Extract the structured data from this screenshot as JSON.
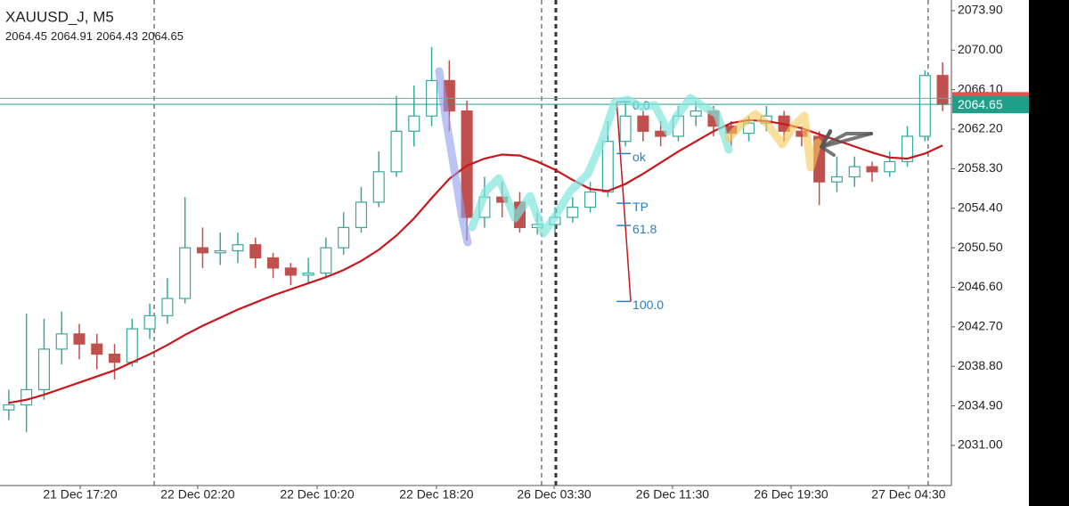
{
  "chart_data": {
    "type": "candlestick",
    "title": "XAUUSD_J, M5",
    "header_ohlc": [
      2064.45,
      2064.91,
      2064.43,
      2064.65
    ],
    "up_color": "#3aa89a",
    "down_color": "#c0504d",
    "open": [
      2034.5,
      2035.0,
      2036.5,
      2040.5,
      2042.0,
      2041.0,
      2040.0,
      2039.2,
      2042.5,
      2043.8,
      2045.5,
      2050.5,
      2050.0,
      2050.2,
      2050.8,
      2049.5,
      2048.5,
      2047.8,
      2048.0,
      2050.5,
      2052.5,
      2055.0,
      2058.0,
      2062.0,
      2063.5,
      2067.0,
      2064.0,
      2053.5,
      2055.5,
      2055.0,
      2052.5,
      2052.8,
      2053.5,
      2054.5,
      2056.0,
      2061.0,
      2063.5,
      2062.0,
      2061.5,
      2063.5,
      2064.0,
      2062.5,
      2061.8,
      2062.8,
      2063.5,
      2062.0,
      2061.5,
      2057.0,
      2057.5,
      2058.5,
      2058.0,
      2059.0,
      2061.5,
      2067.5
    ],
    "high": [
      2036.5,
      2044.0,
      2043.5,
      2044.2,
      2043.0,
      2042.0,
      2041.0,
      2043.5,
      2045.0,
      2047.5,
      2055.5,
      2052.5,
      2052.0,
      2052.0,
      2051.5,
      2050.0,
      2049.0,
      2049.5,
      2051.5,
      2054.0,
      2056.5,
      2060.0,
      2065.5,
      2066.5,
      2070.3,
      2069.0,
      2065.0,
      2057.5,
      2057.0,
      2056.0,
      2054.0,
      2054.5,
      2055.5,
      2057.0,
      2063.0,
      2065.0,
      2064.0,
      2063.0,
      2064.5,
      2065.0,
      2064.5,
      2063.0,
      2063.5,
      2064.5,
      2064.0,
      2062.5,
      2062.0,
      2059.5,
      2059.5,
      2059.0,
      2060.0,
      2062.5,
      2068.0,
      2068.8
    ],
    "low": [
      2033.5,
      2032.3,
      2035.5,
      2039.0,
      2039.5,
      2038.5,
      2037.5,
      2038.8,
      2041.5,
      2043.0,
      2045.0,
      2048.5,
      2048.8,
      2049.0,
      2048.5,
      2047.5,
      2046.8,
      2047.0,
      2047.5,
      2049.8,
      2052.0,
      2054.5,
      2057.5,
      2060.5,
      2062.5,
      2062.0,
      2051.2,
      2052.5,
      2053.5,
      2052.0,
      2051.8,
      2052.0,
      2053.0,
      2054.0,
      2055.5,
      2060.5,
      2061.0,
      2060.5,
      2061.0,
      2062.5,
      2061.5,
      2060.5,
      2061.0,
      2062.0,
      2061.0,
      2060.5,
      2054.7,
      2056.0,
      2056.5,
      2057.0,
      2057.5,
      2058.5,
      2061.0,
      2064.0
    ],
    "close": [
      2035.0,
      2036.5,
      2040.5,
      2042.0,
      2041.0,
      2040.0,
      2039.2,
      2042.5,
      2043.8,
      2045.5,
      2050.5,
      2050.0,
      2050.2,
      2050.8,
      2049.5,
      2048.5,
      2047.8,
      2048.0,
      2050.5,
      2052.5,
      2055.0,
      2058.0,
      2062.0,
      2063.5,
      2067.0,
      2064.0,
      2053.5,
      2055.5,
      2055.0,
      2052.5,
      2052.8,
      2053.5,
      2054.5,
      2056.0,
      2061.0,
      2063.5,
      2062.0,
      2061.5,
      2063.5,
      2064.0,
      2062.5,
      2061.8,
      2062.8,
      2063.5,
      2062.0,
      2061.5,
      2057.0,
      2057.5,
      2058.5,
      2058.0,
      2059.0,
      2061.5,
      2067.5,
      2064.65
    ],
    "ma": {
      "color": "#c8161d",
      "values": [
        2035.2,
        2035.5,
        2036.0,
        2036.6,
        2037.2,
        2037.8,
        2038.4,
        2039.2,
        2040.0,
        2040.9,
        2041.9,
        2042.8,
        2043.6,
        2044.4,
        2045.1,
        2045.8,
        2046.4,
        2047.0,
        2047.6,
        2048.3,
        2049.2,
        2050.3,
        2051.7,
        2053.4,
        2055.4,
        2057.3,
        2058.6,
        2059.3,
        2059.7,
        2059.6,
        2059.0,
        2058.2,
        2057.2,
        2056.3,
        2056.1,
        2056.8,
        2057.8,
        2058.9,
        2060.0,
        2061.0,
        2062.0,
        2062.8,
        2063.1,
        2063.0,
        2062.7,
        2062.3,
        2061.7,
        2061.1,
        2060.5,
        2059.9,
        2059.4,
        2059.3,
        2059.8,
        2060.6
      ]
    },
    "xlim": [
      0,
      54
    ],
    "xticks": [
      {
        "value": 4.55,
        "label": "21 Dec 17:20"
      },
      {
        "value": 11.22,
        "label": "22 Dec 02:20"
      },
      {
        "value": 18.0,
        "label": "22 Dec 10:20"
      },
      {
        "value": 24.77,
        "label": "22 Dec 18:20"
      },
      {
        "value": 31.45,
        "label": "26 Dec 03:30"
      },
      {
        "value": 38.17,
        "label": "26 Dec 11:30"
      },
      {
        "value": 44.9,
        "label": "26 Dec 19:30"
      },
      {
        "value": 51.57,
        "label": "27 Dec 04:30"
      }
    ],
    "ylim": [
      2027.04,
      2074.95
    ],
    "yticks": [
      {
        "value": 2073.9,
        "label": "2073.90"
      },
      {
        "value": 2070.0,
        "label": "2070.00"
      },
      {
        "value": 2066.1,
        "label": "2066.10"
      },
      {
        "value": 2062.2,
        "label": "2062.20"
      },
      {
        "value": 2058.3,
        "label": "2058.30"
      },
      {
        "value": 2054.4,
        "label": "2054.40"
      },
      {
        "value": 2050.5,
        "label": "2050.50"
      },
      {
        "value": 2046.6,
        "label": "2046.60"
      },
      {
        "value": 2042.7,
        "label": "2042.70"
      },
      {
        "value": 2038.8,
        "label": "2038.80"
      },
      {
        "value": 2034.9,
        "label": "2034.90"
      },
      {
        "value": 2031.0,
        "label": "2031.00"
      }
    ],
    "vlines": [
      8.75,
      30.74,
      31.55,
      52.68
    ],
    "ask_line": {
      "value": 2065.25,
      "color": "#e0524f"
    },
    "last_price": 2064.65,
    "last_price_color": "#1f9e89",
    "fib": {
      "color": "#c8161d",
      "label_color": "#2a7fc0",
      "x": [
        35.0,
        35.8
      ],
      "start": 2064.9,
      "end": 2045.2,
      "levels": [
        {
          "value": 2064.9,
          "label": "0.0"
        },
        {
          "value": 2059.8,
          "label": "ok"
        },
        {
          "value": 2054.9,
          "label": "TP"
        },
        {
          "value": 2052.7,
          "label": "61.8"
        },
        {
          "value": 2045.2,
          "label": "100.0"
        }
      ]
    }
  }
}
